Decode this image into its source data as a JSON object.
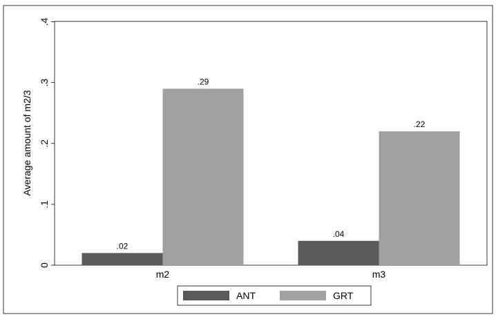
{
  "chart_data": {
    "type": "bar",
    "categories": [
      "m2",
      "m3"
    ],
    "series": [
      {
        "name": "ANT",
        "values": [
          0.02,
          0.04
        ],
        "labels": [
          ".02",
          ".04"
        ],
        "color": "#5a5a5a"
      },
      {
        "name": "GRT",
        "values": [
          0.29,
          0.22
        ],
        "labels": [
          ".29",
          ".22"
        ],
        "color": "#a0a0a0"
      }
    ],
    "ylabel": "Average amount of m2/3",
    "ylim": [
      0,
      0.4
    ],
    "yticks": [
      0,
      0.1,
      0.2,
      0.3,
      0.4
    ],
    "ytick_labels": [
      "0",
      ".1",
      ".2",
      ".3",
      ".4"
    ],
    "grid": false,
    "legend_position": "bottom"
  }
}
